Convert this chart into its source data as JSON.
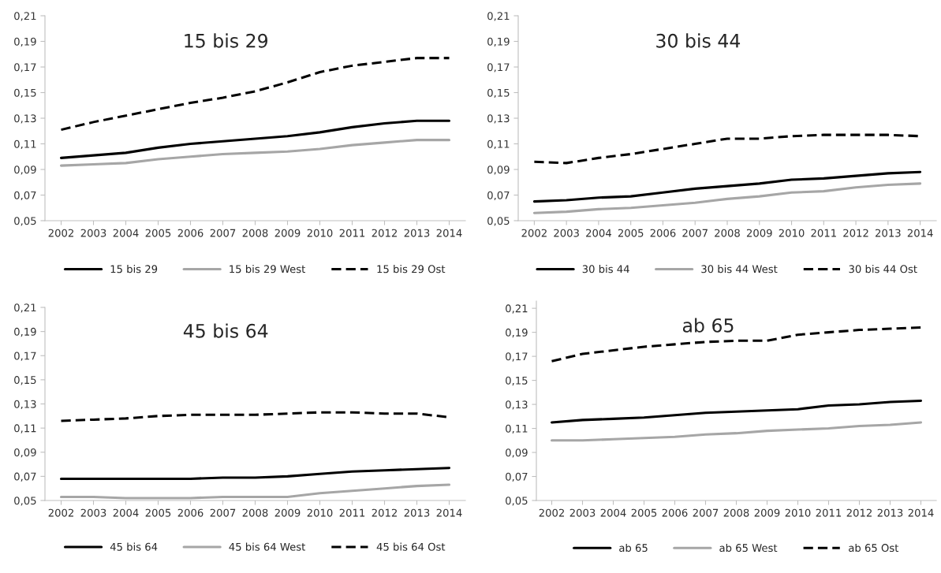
{
  "chart_data": [
    {
      "type": "line",
      "title": "15 bis 29",
      "categories": [
        "2002",
        "2003",
        "2004",
        "2005",
        "2006",
        "2007",
        "2008",
        "2009",
        "2010",
        "2011",
        "2012",
        "2013",
        "2014"
      ],
      "ylim": [
        0.05,
        0.21
      ],
      "yticks": [
        {
          "value": 0.05,
          "label": "0,05"
        },
        {
          "value": 0.07,
          "label": "0,07"
        },
        {
          "value": 0.09,
          "label": "0,09"
        },
        {
          "value": 0.11,
          "label": "0,11"
        },
        {
          "value": 0.13,
          "label": "0,13"
        },
        {
          "value": 0.15,
          "label": "0,15"
        },
        {
          "value": 0.17,
          "label": "0,17"
        },
        {
          "value": 0.19,
          "label": "0,19"
        },
        {
          "value": 0.21,
          "label": "0,21"
        }
      ],
      "grid": false,
      "legend": "bottom",
      "marker": "none",
      "series": [
        {
          "name": "15 bis 29",
          "color": "#000000",
          "line_style": "solid",
          "values": [
            0.099,
            0.101,
            0.103,
            0.107,
            0.11,
            0.112,
            0.114,
            0.116,
            0.119,
            0.123,
            0.126,
            0.128,
            0.128
          ]
        },
        {
          "name": "15 bis 29 West",
          "color": "#a6a6a6",
          "line_style": "solid",
          "values": [
            0.093,
            0.094,
            0.095,
            0.098,
            0.1,
            0.102,
            0.103,
            0.104,
            0.106,
            0.109,
            0.111,
            0.113,
            0.113
          ]
        },
        {
          "name": "15 bis 29 Ost",
          "color": "#000000",
          "line_style": "dashed",
          "values": [
            0.121,
            0.127,
            0.132,
            0.137,
            0.142,
            0.146,
            0.151,
            0.158,
            0.166,
            0.171,
            0.174,
            0.177,
            0.177
          ]
        }
      ]
    },
    {
      "type": "line",
      "title": "30 bis 44",
      "categories": [
        "2002",
        "2003",
        "2004",
        "2005",
        "2006",
        "2007",
        "2008",
        "2009",
        "2010",
        "2011",
        "2012",
        "2013",
        "2014"
      ],
      "ylim": [
        0.05,
        0.21
      ],
      "yticks": [
        {
          "value": 0.05,
          "label": "0,05"
        },
        {
          "value": 0.07,
          "label": "0,07"
        },
        {
          "value": 0.09,
          "label": "0,09"
        },
        {
          "value": 0.11,
          "label": "0,11"
        },
        {
          "value": 0.13,
          "label": "0,13"
        },
        {
          "value": 0.15,
          "label": "0,15"
        },
        {
          "value": 0.17,
          "label": "0,17"
        },
        {
          "value": 0.19,
          "label": "0,19"
        },
        {
          "value": 0.21,
          "label": "0,21"
        }
      ],
      "grid": false,
      "legend": "bottom",
      "marker": "none",
      "series": [
        {
          "name": "30 bis 44",
          "color": "#000000",
          "line_style": "solid",
          "values": [
            0.065,
            0.066,
            0.068,
            0.069,
            0.072,
            0.075,
            0.077,
            0.079,
            0.082,
            0.083,
            0.085,
            0.087,
            0.088
          ]
        },
        {
          "name": "30 bis 44 West",
          "color": "#a6a6a6",
          "line_style": "solid",
          "values": [
            0.056,
            0.057,
            0.059,
            0.06,
            0.062,
            0.064,
            0.067,
            0.069,
            0.072,
            0.073,
            0.076,
            0.078,
            0.079
          ]
        },
        {
          "name": "30 bis 44 Ost",
          "color": "#000000",
          "line_style": "dashed",
          "values": [
            0.096,
            0.095,
            0.099,
            0.102,
            0.106,
            0.11,
            0.114,
            0.114,
            0.116,
            0.117,
            0.117,
            0.117,
            0.116
          ]
        }
      ]
    },
    {
      "type": "line",
      "title": "45 bis 64",
      "categories": [
        "2002",
        "2003",
        "2004",
        "2005",
        "2006",
        "2007",
        "2008",
        "2009",
        "2010",
        "2011",
        "2012",
        "2013",
        "2014"
      ],
      "ylim": [
        0.05,
        0.21
      ],
      "yticks": [
        {
          "value": 0.05,
          "label": "0,05"
        },
        {
          "value": 0.07,
          "label": "0,07"
        },
        {
          "value": 0.09,
          "label": "0,09"
        },
        {
          "value": 0.11,
          "label": "0,11"
        },
        {
          "value": 0.13,
          "label": "0,13"
        },
        {
          "value": 0.15,
          "label": "0,15"
        },
        {
          "value": 0.17,
          "label": "0,17"
        },
        {
          "value": 0.19,
          "label": "0,19"
        },
        {
          "value": 0.21,
          "label": "0,21"
        }
      ],
      "grid": false,
      "legend": "bottom",
      "marker": "none",
      "series": [
        {
          "name": "45 bis 64",
          "color": "#000000",
          "line_style": "solid",
          "values": [
            0.068,
            0.068,
            0.068,
            0.068,
            0.068,
            0.069,
            0.069,
            0.07,
            0.072,
            0.074,
            0.075,
            0.076,
            0.077
          ]
        },
        {
          "name": "45 bis 64 West",
          "color": "#a6a6a6",
          "line_style": "solid",
          "values": [
            0.053,
            0.053,
            0.052,
            0.052,
            0.052,
            0.053,
            0.053,
            0.053,
            0.056,
            0.058,
            0.06,
            0.062,
            0.063
          ]
        },
        {
          "name": "45 bis 64 Ost",
          "color": "#000000",
          "line_style": "dashed",
          "values": [
            0.116,
            0.117,
            0.118,
            0.12,
            0.121,
            0.121,
            0.121,
            0.122,
            0.123,
            0.123,
            0.122,
            0.122,
            0.119
          ]
        }
      ]
    },
    {
      "type": "line",
      "title": "ab 65",
      "categories": [
        "2002",
        "2003",
        "2004",
        "2005",
        "2006",
        "2007",
        "2008",
        "2009",
        "2010",
        "2011",
        "2012",
        "2013",
        "2014"
      ],
      "ylim": [
        0.05,
        0.216
      ],
      "yticks": [
        {
          "value": 0.05,
          "label": "0,05"
        },
        {
          "value": 0.07,
          "label": "0,07"
        },
        {
          "value": 0.09,
          "label": "0,09"
        },
        {
          "value": 0.11,
          "label": "0,11"
        },
        {
          "value": 0.13,
          "label": "0,13"
        },
        {
          "value": 0.15,
          "label": "0,15"
        },
        {
          "value": 0.17,
          "label": "0,17"
        },
        {
          "value": 0.19,
          "label": "0,19"
        },
        {
          "value": 0.21,
          "label": "0,21"
        }
      ],
      "grid": false,
      "legend": "bottom",
      "marker": "none",
      "series": [
        {
          "name": "ab 65",
          "color": "#000000",
          "line_style": "solid",
          "values": [
            0.115,
            0.117,
            0.118,
            0.119,
            0.121,
            0.123,
            0.124,
            0.125,
            0.126,
            0.129,
            0.13,
            0.132,
            0.133
          ]
        },
        {
          "name": "ab 65 West",
          "color": "#a6a6a6",
          "line_style": "solid",
          "values": [
            0.1,
            0.1,
            0.101,
            0.102,
            0.103,
            0.105,
            0.106,
            0.108,
            0.109,
            0.11,
            0.112,
            0.113,
            0.115
          ]
        },
        {
          "name": "ab 65 Ost",
          "color": "#000000",
          "line_style": "dashed",
          "values": [
            0.166,
            0.172,
            0.175,
            0.178,
            0.18,
            0.182,
            0.183,
            0.183,
            0.188,
            0.19,
            0.192,
            0.193,
            0.194
          ]
        }
      ]
    }
  ]
}
